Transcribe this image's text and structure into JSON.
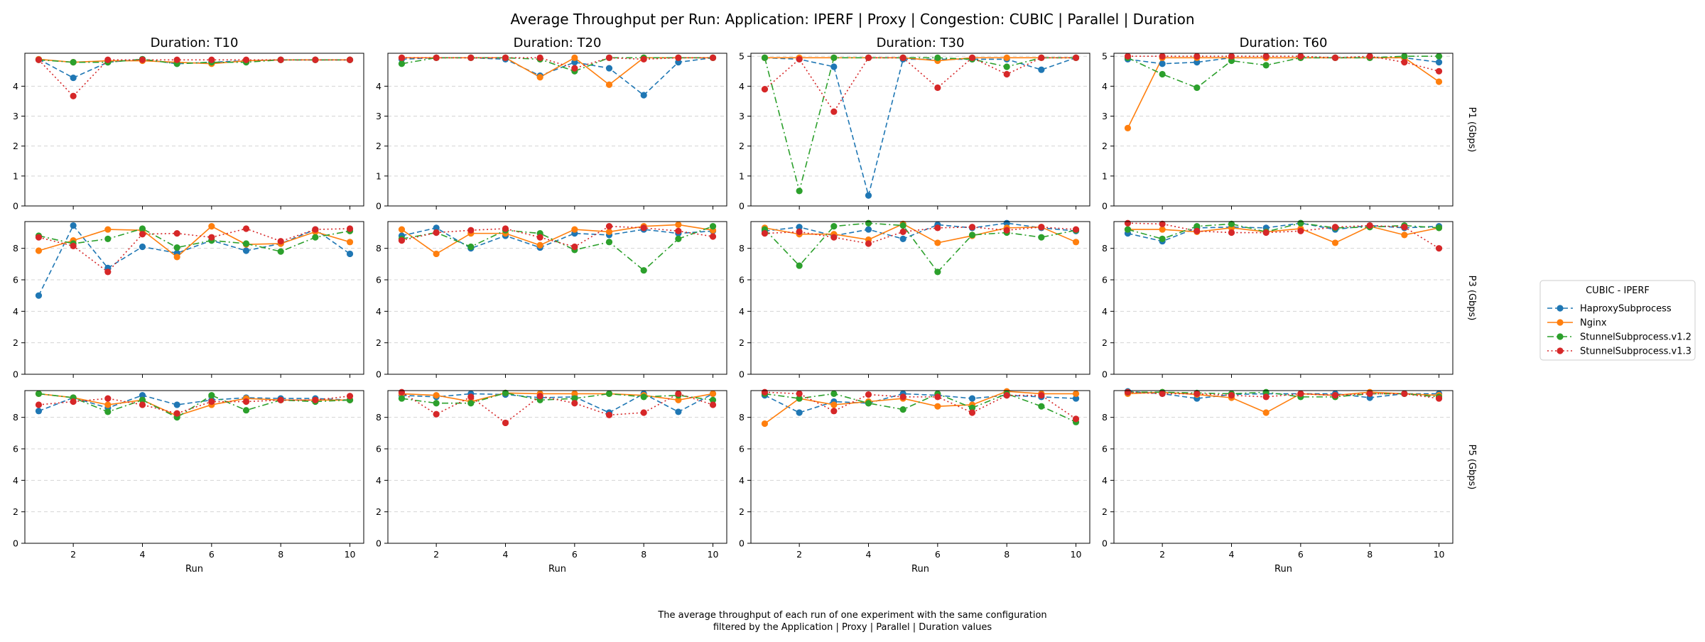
{
  "chart_data": {
    "type": "line",
    "title": "Average Throughput per Run: Application: IPERF | Proxy | Congestion: CUBIC | Parallel | Duration",
    "caption_lines": [
      "The average throughput of each run of one experiment with the same configuration",
      "filtered by the Application | Proxy | Parallel | Duration values"
    ],
    "xlabel": "Run",
    "legend": {
      "title": "CUBIC - IPERF",
      "placement": "center-right",
      "entries": [
        {
          "name": "HaproxySubprocess",
          "color": "#1f77b4",
          "linestyle": "dashed"
        },
        {
          "name": "Nginx",
          "color": "#ff7f0e",
          "linestyle": "solid"
        },
        {
          "name": "StunnelSubprocess.v1.2",
          "color": "#2ca02c",
          "linestyle": "dashdot"
        },
        {
          "name": "StunnelSubprocess.v1.3",
          "color": "#d62728",
          "linestyle": "dotted"
        }
      ]
    },
    "col_titles": [
      "Duration: T10",
      "Duration: T20",
      "Duration: T30",
      "Duration: T60"
    ],
    "row_labels": [
      "P1 (Gbps)",
      "P3 (Gbps)",
      "P5 (Gbps)"
    ],
    "x": [
      1,
      2,
      3,
      4,
      5,
      6,
      7,
      8,
      9,
      10
    ],
    "x_ticks": [
      2,
      4,
      6,
      8,
      10
    ],
    "xlim": [
      0.6,
      10.4
    ],
    "grid": "y-dashed",
    "rows": [
      {
        "ylim": [
          0,
          5.1
        ],
        "panels": [
          {
            "y_ticks": [
              0,
              1,
              2,
              3,
              4
            ],
            "series": [
              [
                4.9,
                4.28,
                4.8,
                4.9,
                4.75,
                4.8,
                4.85,
                4.88,
                4.88,
                4.88
              ],
              [
                4.9,
                4.8,
                4.85,
                4.85,
                4.8,
                4.75,
                4.85,
                4.88,
                4.88,
                4.88
              ],
              [
                4.88,
                4.8,
                4.8,
                4.9,
                4.75,
                4.8,
                4.8,
                4.88,
                4.88,
                4.88
              ],
              [
                4.88,
                3.67,
                4.88,
                4.88,
                4.88,
                4.88,
                4.88,
                4.88,
                4.88,
                4.88
              ]
            ]
          },
          {
            "y_ticks": [
              0,
              1,
              2,
              3,
              4
            ],
            "series": [
              [
                4.9,
                4.95,
                4.95,
                4.9,
                4.35,
                4.8,
                4.6,
                3.7,
                4.8,
                4.95
              ],
              [
                4.95,
                4.95,
                4.95,
                4.95,
                4.3,
                4.95,
                4.05,
                4.95,
                4.95,
                4.95
              ],
              [
                4.75,
                4.95,
                4.95,
                4.95,
                4.9,
                4.5,
                4.95,
                4.95,
                4.95,
                4.95
              ],
              [
                4.95,
                4.95,
                4.95,
                4.95,
                4.95,
                4.6,
                4.95,
                4.9,
                4.95,
                4.95
              ]
            ]
          },
          {
            "y_ticks": [
              0,
              1,
              2,
              3,
              4,
              5
            ],
            "series": [
              [
                4.95,
                4.9,
                4.65,
                0.35,
                4.9,
                4.9,
                4.9,
                4.9,
                4.55,
                4.95
              ],
              [
                4.95,
                4.95,
                4.95,
                4.95,
                4.95,
                4.85,
                4.95,
                4.95,
                4.95,
                4.95
              ],
              [
                4.95,
                0.5,
                4.95,
                4.95,
                4.95,
                4.95,
                4.9,
                4.65,
                4.95,
                4.95
              ],
              [
                3.9,
                4.9,
                3.15,
                4.95,
                4.95,
                3.95,
                4.95,
                4.4,
                4.95,
                4.95
              ]
            ]
          },
          {
            "y_ticks": [
              0,
              1,
              2,
              3,
              4,
              5
            ],
            "series": [
              [
                4.9,
                4.75,
                4.8,
                4.95,
                4.95,
                4.95,
                4.95,
                4.95,
                4.95,
                4.8
              ],
              [
                2.6,
                4.95,
                4.95,
                4.95,
                4.95,
                4.95,
                4.95,
                4.95,
                4.95,
                4.15
              ],
              [
                4.95,
                4.4,
                3.95,
                4.85,
                4.7,
                4.95,
                4.95,
                4.95,
                5.0,
                5.0
              ],
              [
                5.0,
                5.0,
                5.0,
                5.0,
                5.0,
                5.0,
                4.95,
                5.0,
                4.8,
                4.5
              ]
            ]
          }
        ]
      },
      {
        "ylim": [
          0,
          9.7
        ],
        "panels": [
          {
            "y_ticks": [
              0,
              2,
              4,
              6,
              8
            ],
            "series": [
              [
                5.0,
                9.45,
                6.75,
                8.1,
                7.7,
                8.5,
                7.85,
                8.3,
                9.2,
                7.65
              ],
              [
                7.85,
                8.5,
                9.2,
                9.15,
                7.45,
                9.4,
                8.25,
                8.3,
                9.05,
                8.4
              ],
              [
                8.8,
                8.3,
                8.6,
                9.25,
                8.05,
                8.5,
                8.3,
                7.8,
                8.7,
                9.1
              ],
              [
                8.7,
                8.15,
                6.5,
                8.9,
                8.95,
                8.7,
                9.25,
                8.45,
                9.2,
                9.25
              ]
            ]
          },
          {
            "y_ticks": [
              0,
              2,
              4,
              6,
              8
            ],
            "series": [
              [
                8.8,
                9.3,
                8.0,
                8.8,
                8.05,
                8.95,
                8.85,
                9.2,
                8.95,
                9.1
              ],
              [
                9.2,
                7.65,
                8.95,
                8.95,
                8.2,
                9.2,
                9.05,
                9.4,
                9.5,
                9.15
              ],
              [
                8.6,
                9.0,
                8.1,
                9.15,
                8.95,
                7.9,
                8.4,
                6.6,
                8.6,
                9.4
              ],
              [
                8.5,
                9.0,
                9.15,
                9.25,
                8.7,
                8.1,
                9.4,
                9.3,
                9.1,
                8.75
              ]
            ]
          },
          {
            "y_ticks": [
              0,
              2,
              4,
              6,
              8
            ],
            "series": [
              [
                9.1,
                9.35,
                8.8,
                9.2,
                8.6,
                9.5,
                9.3,
                9.6,
                9.3,
                9.1
              ],
              [
                9.3,
                8.9,
                8.9,
                8.55,
                9.55,
                8.35,
                8.8,
                9.3,
                9.35,
                8.4
              ],
              [
                9.2,
                6.9,
                9.4,
                9.6,
                9.45,
                6.5,
                8.85,
                9.0,
                8.7,
                9.15
              ],
              [
                8.95,
                9.05,
                8.7,
                8.3,
                9.05,
                9.3,
                9.35,
                9.15,
                9.35,
                9.2
              ]
            ]
          },
          {
            "y_ticks": [
              0,
              2,
              4,
              6,
              8
            ],
            "series": [
              [
                8.95,
                8.45,
                9.3,
                9.35,
                9.3,
                9.6,
                9.2,
                9.45,
                9.3,
                9.4
              ],
              [
                9.2,
                9.2,
                9.05,
                9.3,
                9.05,
                9.25,
                8.35,
                9.4,
                8.85,
                9.3
              ],
              [
                9.2,
                8.6,
                9.4,
                9.55,
                9.05,
                9.6,
                9.3,
                9.35,
                9.45,
                9.3
              ],
              [
                9.6,
                9.55,
                9.1,
                9.0,
                9.0,
                9.1,
                9.35,
                9.45,
                9.35,
                8.0
              ]
            ]
          }
        ]
      },
      {
        "ylim": [
          0,
          9.7
        ],
        "panels": [
          {
            "y_ticks": [
              0,
              2,
              4,
              6,
              8
            ],
            "series": [
              [
                8.4,
                9.25,
                8.6,
                9.4,
                8.8,
                9.1,
                9.25,
                9.2,
                9.2,
                9.1
              ],
              [
                9.5,
                9.25,
                8.8,
                9.1,
                8.1,
                8.8,
                9.2,
                9.1,
                9.1,
                9.1
              ],
              [
                9.5,
                9.25,
                8.35,
                9.1,
                8.0,
                9.4,
                8.45,
                9.1,
                9.0,
                9.1
              ],
              [
                8.8,
                9.0,
                9.2,
                8.8,
                8.25,
                9.0,
                9.0,
                9.1,
                9.1,
                9.35
              ]
            ]
          },
          {
            "y_ticks": [
              0,
              2,
              4,
              6,
              8
            ],
            "series": [
              [
                9.4,
                9.3,
                9.5,
                9.45,
                9.25,
                9.3,
                8.3,
                9.5,
                8.35,
                9.5
              ],
              [
                9.5,
                9.4,
                9.0,
                9.55,
                9.5,
                9.5,
                9.5,
                9.4,
                9.1,
                9.5
              ],
              [
                9.2,
                8.9,
                8.9,
                9.55,
                9.1,
                9.2,
                9.5,
                9.3,
                9.4,
                9.1
              ],
              [
                9.6,
                8.2,
                9.3,
                7.65,
                9.35,
                8.9,
                8.15,
                8.3,
                9.5,
                8.8
              ]
            ]
          },
          {
            "y_ticks": [
              0,
              2,
              4,
              6,
              8
            ],
            "series": [
              [
                9.4,
                8.3,
                9.0,
                8.9,
                9.5,
                9.4,
                9.2,
                9.4,
                9.3,
                9.2
              ],
              [
                7.6,
                9.2,
                8.8,
                9.0,
                9.2,
                8.7,
                8.8,
                9.65,
                9.5,
                9.5
              ],
              [
                9.5,
                9.2,
                9.5,
                8.9,
                8.5,
                9.5,
                8.6,
                9.5,
                8.7,
                7.7
              ],
              [
                9.6,
                9.5,
                8.4,
                9.45,
                9.3,
                9.3,
                8.3,
                9.4,
                9.4,
                7.9
              ]
            ]
          },
          {
            "y_ticks": [
              0,
              2,
              4,
              6,
              8
            ],
            "series": [
              [
                9.65,
                9.5,
                9.2,
                9.45,
                9.5,
                9.5,
                9.5,
                9.25,
                9.5,
                9.5
              ],
              [
                9.5,
                9.6,
                9.45,
                9.25,
                8.3,
                9.5,
                9.4,
                9.6,
                9.5,
                9.4
              ],
              [
                9.6,
                9.6,
                9.55,
                9.5,
                9.6,
                9.3,
                9.3,
                9.5,
                9.5,
                9.3
              ],
              [
                9.6,
                9.5,
                9.5,
                9.4,
                9.3,
                9.5,
                9.4,
                9.5,
                9.5,
                9.2
              ]
            ]
          }
        ]
      }
    ]
  }
}
